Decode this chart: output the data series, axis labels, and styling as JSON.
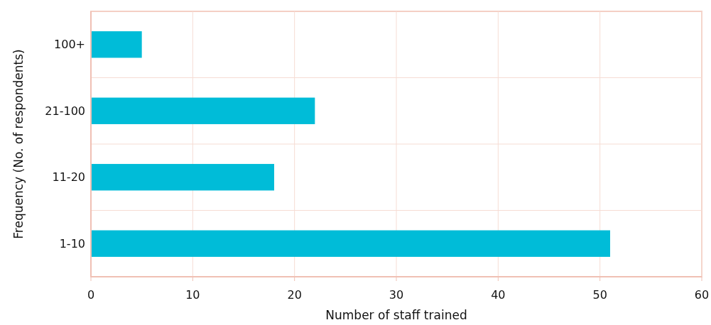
{
  "chart_data": {
    "type": "bar",
    "orientation": "horizontal",
    "xlabel": "Number of staff trained",
    "ylabel": "Frequency (No. of respondents)",
    "categories": [
      "100+",
      "21-100",
      "11-20",
      "1-10"
    ],
    "values": [
      5,
      22,
      18,
      51
    ],
    "color": "#00bcd8",
    "xlim": [
      0,
      60
    ],
    "xticks": [
      0,
      10,
      20,
      30,
      40,
      50,
      60
    ],
    "grid": true
  }
}
